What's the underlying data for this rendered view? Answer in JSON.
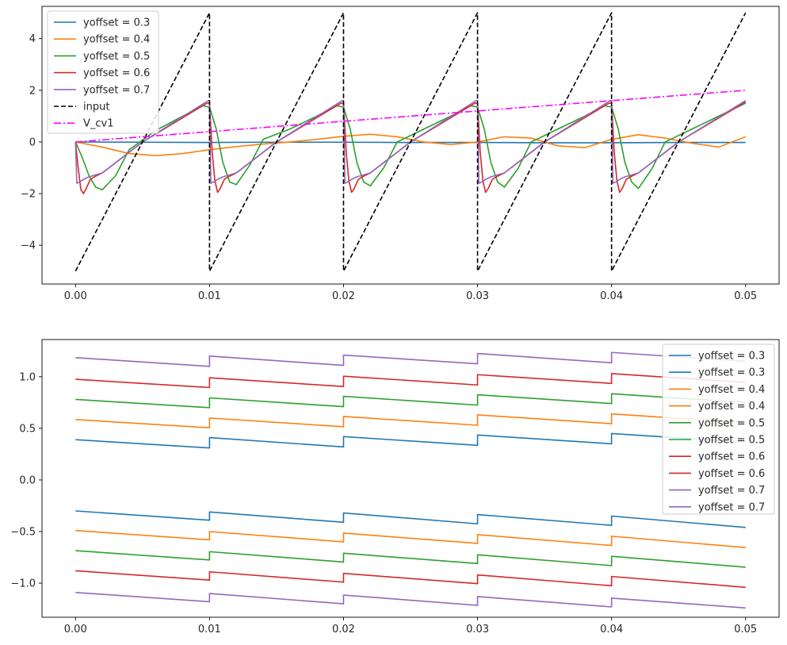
{
  "chart_data": [
    {
      "type": "line",
      "title": "",
      "xlabel": "",
      "ylabel": "",
      "xlim": [
        -0.0025,
        0.0525
      ],
      "ylim": [
        -5.5,
        5.25
      ],
      "xticks": [
        0.0,
        0.01,
        0.02,
        0.03,
        0.04,
        0.05
      ],
      "xtick_labels": [
        "0.00",
        "0.01",
        "0.02",
        "0.03",
        "0.04",
        "0.05"
      ],
      "yticks": [
        -4,
        -2,
        0,
        2,
        4
      ],
      "ytick_labels": [
        "−4",
        "−2",
        "0",
        "2",
        "4"
      ],
      "grid": false,
      "legend_position": "upper-left",
      "series": [
        {
          "name": "yoffset = 0.3",
          "color": "#1f77b4",
          "style": "solid",
          "x": [
            0.0,
            0.005,
            0.01,
            0.015,
            0.02,
            0.025,
            0.03,
            0.035,
            0.04,
            0.045,
            0.05
          ],
          "y": [
            0.0,
            -0.01,
            -0.02,
            -0.01,
            -0.01,
            -0.02,
            -0.02,
            -0.03,
            -0.03,
            -0.02,
            -0.02
          ]
        },
        {
          "name": "yoffset = 0.4",
          "color": "#ff7f0e",
          "style": "solid",
          "x": [
            0.0,
            0.002,
            0.004,
            0.006,
            0.008,
            0.01,
            0.012,
            0.014,
            0.016,
            0.018,
            0.02,
            0.022,
            0.024,
            0.026,
            0.028,
            0.03,
            0.032,
            0.034,
            0.036,
            0.038,
            0.04,
            0.042,
            0.044,
            0.046,
            0.048,
            0.05
          ],
          "y": [
            0.0,
            -0.2,
            -0.45,
            -0.53,
            -0.45,
            -0.3,
            -0.18,
            -0.08,
            0.0,
            0.1,
            0.22,
            0.3,
            0.2,
            0.0,
            -0.1,
            0.0,
            0.2,
            0.15,
            -0.15,
            -0.22,
            0.1,
            0.28,
            0.15,
            -0.05,
            -0.2,
            0.2
          ]
        },
        {
          "name": "yoffset = 0.5",
          "color": "#2ca02c",
          "style": "solid",
          "x": [
            0.0,
            0.0005,
            0.001,
            0.0015,
            0.002,
            0.003,
            0.004,
            0.006,
            0.008,
            0.0095,
            0.01,
            0.0105,
            0.011,
            0.0115,
            0.012,
            0.013,
            0.014,
            0.016,
            0.018,
            0.0195,
            0.02,
            0.0205,
            0.021,
            0.0215,
            0.022,
            0.023,
            0.024,
            0.026,
            0.028,
            0.0295,
            0.03,
            0.0305,
            0.031,
            0.0315,
            0.032,
            0.033,
            0.034,
            0.036,
            0.038,
            0.0395,
            0.04,
            0.0405,
            0.041,
            0.0415,
            0.042,
            0.043,
            0.044,
            0.046,
            0.048,
            0.05
          ],
          "y": [
            0.0,
            -0.6,
            -1.3,
            -1.75,
            -1.85,
            -1.3,
            -0.3,
            0.45,
            1.0,
            1.4,
            1.35,
            0.5,
            -0.8,
            -1.55,
            -1.65,
            -0.9,
            0.1,
            0.5,
            1.0,
            1.4,
            1.35,
            0.5,
            -0.8,
            -1.55,
            -1.7,
            -1.0,
            0.0,
            0.5,
            1.0,
            1.4,
            1.35,
            0.5,
            -0.8,
            -1.55,
            -1.75,
            -1.05,
            0.0,
            0.5,
            1.0,
            1.4,
            1.35,
            0.5,
            -0.8,
            -1.55,
            -1.8,
            -1.05,
            0.0,
            0.5,
            1.0,
            1.5
          ]
        },
        {
          "name": "yoffset = 0.6",
          "color": "#d62728",
          "style": "solid",
          "x": [
            0.0,
            0.0002,
            0.0004,
            0.0006,
            0.0008,
            0.0011,
            0.0014,
            0.002,
            0.005,
            0.0098,
            0.01,
            0.0102,
            0.0104,
            0.0106,
            0.0108,
            0.0111,
            0.0114,
            0.012,
            0.015,
            0.0198,
            0.02,
            0.0202,
            0.0204,
            0.0206,
            0.0208,
            0.0211,
            0.0214,
            0.022,
            0.025,
            0.0298,
            0.03,
            0.0302,
            0.0304,
            0.0306,
            0.0308,
            0.0311,
            0.0314,
            0.032,
            0.035,
            0.0398,
            0.04,
            0.0402,
            0.0404,
            0.0406,
            0.0408,
            0.0411,
            0.0414,
            0.042,
            0.045,
            0.05
          ],
          "y": [
            0.0,
            -1.0,
            -1.85,
            -2.0,
            -1.8,
            -1.45,
            -1.35,
            -1.2,
            0.0,
            1.5,
            1.5,
            -0.4,
            -1.5,
            -1.95,
            -1.8,
            -1.45,
            -1.35,
            -1.2,
            0.0,
            1.5,
            1.5,
            -0.4,
            -1.5,
            -1.95,
            -1.8,
            -1.45,
            -1.35,
            -1.2,
            0.0,
            1.5,
            1.5,
            -0.4,
            -1.5,
            -1.95,
            -1.8,
            -1.45,
            -1.35,
            -1.2,
            0.0,
            1.5,
            1.5,
            -0.4,
            -1.5,
            -1.95,
            -1.8,
            -1.45,
            -1.35,
            -1.2,
            0.0,
            1.55
          ]
        },
        {
          "name": "yoffset = 0.7",
          "color": "#9467bd",
          "style": "solid",
          "x": [
            0.0,
            0.0001,
            0.0003,
            0.0006,
            0.001,
            0.002,
            0.005,
            0.0099,
            0.01,
            0.0101,
            0.0103,
            0.0106,
            0.011,
            0.012,
            0.015,
            0.0199,
            0.02,
            0.0201,
            0.0203,
            0.0206,
            0.021,
            0.022,
            0.025,
            0.0299,
            0.03,
            0.0301,
            0.0303,
            0.0306,
            0.031,
            0.032,
            0.035,
            0.0399,
            0.04,
            0.0401,
            0.0403,
            0.0406,
            0.041,
            0.042,
            0.045,
            0.05
          ],
          "y": [
            0.0,
            -1.6,
            -1.55,
            -1.45,
            -1.35,
            -1.2,
            0.0,
            1.6,
            1.6,
            -1.6,
            -1.55,
            -1.45,
            -1.35,
            -1.2,
            0.0,
            1.6,
            1.6,
            -1.6,
            -1.55,
            -1.45,
            -1.35,
            -1.2,
            0.0,
            1.6,
            1.6,
            -1.6,
            -1.55,
            -1.45,
            -1.35,
            -1.2,
            0.0,
            1.6,
            1.6,
            -1.6,
            -1.55,
            -1.45,
            -1.35,
            -1.2,
            0.0,
            1.6
          ]
        },
        {
          "name": "input",
          "color": "#000000",
          "style": "dashed",
          "x": [
            0.0,
            0.01,
            0.01,
            0.02,
            0.02,
            0.03,
            0.03,
            0.04,
            0.04,
            0.05
          ],
          "y": [
            -5.0,
            5.0,
            -5.0,
            5.0,
            -5.0,
            5.0,
            -5.0,
            5.0,
            -5.0,
            5.0
          ]
        },
        {
          "name": "V_cv1",
          "color": "#ff00ff",
          "style": "dashdot",
          "x": [
            0.0,
            0.05
          ],
          "y": [
            0.0,
            2.0
          ]
        }
      ]
    },
    {
      "type": "line",
      "title": "",
      "xlabel": "",
      "ylabel": "",
      "xlim": [
        -0.0025,
        0.0525
      ],
      "ylim": [
        -1.33,
        1.36
      ],
      "xticks": [
        0.0,
        0.01,
        0.02,
        0.03,
        0.04,
        0.05
      ],
      "xtick_labels": [
        "0.00",
        "0.01",
        "0.02",
        "0.03",
        "0.04",
        "0.05"
      ],
      "yticks": [
        -1.0,
        -0.5,
        0.0,
        0.5,
        1.0
      ],
      "ytick_labels": [
        "−1.0",
        "−0.5",
        "0.0",
        "0.5",
        "1.0"
      ],
      "grid": false,
      "legend_position": "upper-right",
      "series": [
        {
          "name": "yoffset = 0.3",
          "color": "#1f77b4",
          "style": "solid",
          "x": [
            0.0,
            0.01,
            0.01,
            0.02,
            0.02,
            0.03,
            0.03,
            0.04,
            0.04,
            0.05
          ],
          "y": [
            0.39,
            0.31,
            0.41,
            0.32,
            0.42,
            0.335,
            0.435,
            0.35,
            0.45,
            0.365
          ]
        },
        {
          "name": "yoffset = 0.3",
          "color": "#1f77b4",
          "style": "solid",
          "x": [
            0.0,
            0.01,
            0.01,
            0.02,
            0.02,
            0.03,
            0.03,
            0.04,
            0.04,
            0.05
          ],
          "y": [
            -0.3,
            -0.39,
            -0.31,
            -0.41,
            -0.32,
            -0.425,
            -0.335,
            -0.44,
            -0.35,
            -0.46
          ]
        },
        {
          "name": "yoffset = 0.4",
          "color": "#ff7f0e",
          "style": "solid",
          "x": [
            0.0,
            0.01,
            0.01,
            0.02,
            0.02,
            0.03,
            0.03,
            0.04,
            0.04,
            0.05
          ],
          "y": [
            0.585,
            0.505,
            0.6,
            0.515,
            0.615,
            0.53,
            0.63,
            0.545,
            0.64,
            0.555
          ]
        },
        {
          "name": "yoffset = 0.4",
          "color": "#ff7f0e",
          "style": "solid",
          "x": [
            0.0,
            0.01,
            0.01,
            0.02,
            0.02,
            0.03,
            0.03,
            0.04,
            0.04,
            0.05
          ],
          "y": [
            -0.49,
            -0.58,
            -0.5,
            -0.6,
            -0.515,
            -0.615,
            -0.53,
            -0.635,
            -0.545,
            -0.655
          ]
        },
        {
          "name": "yoffset = 0.5",
          "color": "#2ca02c",
          "style": "solid",
          "x": [
            0.0,
            0.01,
            0.01,
            0.02,
            0.02,
            0.03,
            0.03,
            0.04,
            0.04,
            0.05
          ],
          "y": [
            0.78,
            0.7,
            0.795,
            0.71,
            0.81,
            0.725,
            0.825,
            0.74,
            0.835,
            0.75
          ]
        },
        {
          "name": "yoffset = 0.5",
          "color": "#2ca02c",
          "style": "solid",
          "x": [
            0.0,
            0.01,
            0.01,
            0.02,
            0.02,
            0.03,
            0.03,
            0.04,
            0.04,
            0.05
          ],
          "y": [
            -0.685,
            -0.775,
            -0.695,
            -0.795,
            -0.71,
            -0.81,
            -0.725,
            -0.83,
            -0.74,
            -0.845
          ]
        },
        {
          "name": "yoffset = 0.6",
          "color": "#d62728",
          "style": "solid",
          "x": [
            0.0,
            0.01,
            0.01,
            0.02,
            0.02,
            0.03,
            0.03,
            0.04,
            0.04,
            0.05
          ],
          "y": [
            0.975,
            0.895,
            0.99,
            0.905,
            1.005,
            0.92,
            1.02,
            0.935,
            1.03,
            0.945
          ]
        },
        {
          "name": "yoffset = 0.6",
          "color": "#d62728",
          "style": "solid",
          "x": [
            0.0,
            0.01,
            0.01,
            0.02,
            0.02,
            0.03,
            0.03,
            0.04,
            0.04,
            0.05
          ],
          "y": [
            -0.88,
            -0.97,
            -0.89,
            -0.99,
            -0.905,
            -1.005,
            -0.92,
            -1.025,
            -0.935,
            -1.04
          ]
        },
        {
          "name": "yoffset = 0.7",
          "color": "#9467bd",
          "style": "solid",
          "x": [
            0.0,
            0.01,
            0.01,
            0.02,
            0.02,
            0.03,
            0.03,
            0.04,
            0.04,
            0.05
          ],
          "y": [
            1.185,
            1.1,
            1.2,
            1.11,
            1.21,
            1.125,
            1.225,
            1.135,
            1.235,
            1.15
          ]
        },
        {
          "name": "yoffset = 0.7",
          "color": "#9467bd",
          "style": "solid",
          "x": [
            0.0,
            0.01,
            0.01,
            0.02,
            0.02,
            0.03,
            0.03,
            0.04,
            0.04,
            0.05
          ],
          "y": [
            -1.09,
            -1.18,
            -1.1,
            -1.2,
            -1.115,
            -1.215,
            -1.13,
            -1.23,
            -1.145,
            -1.24
          ]
        }
      ]
    }
  ]
}
